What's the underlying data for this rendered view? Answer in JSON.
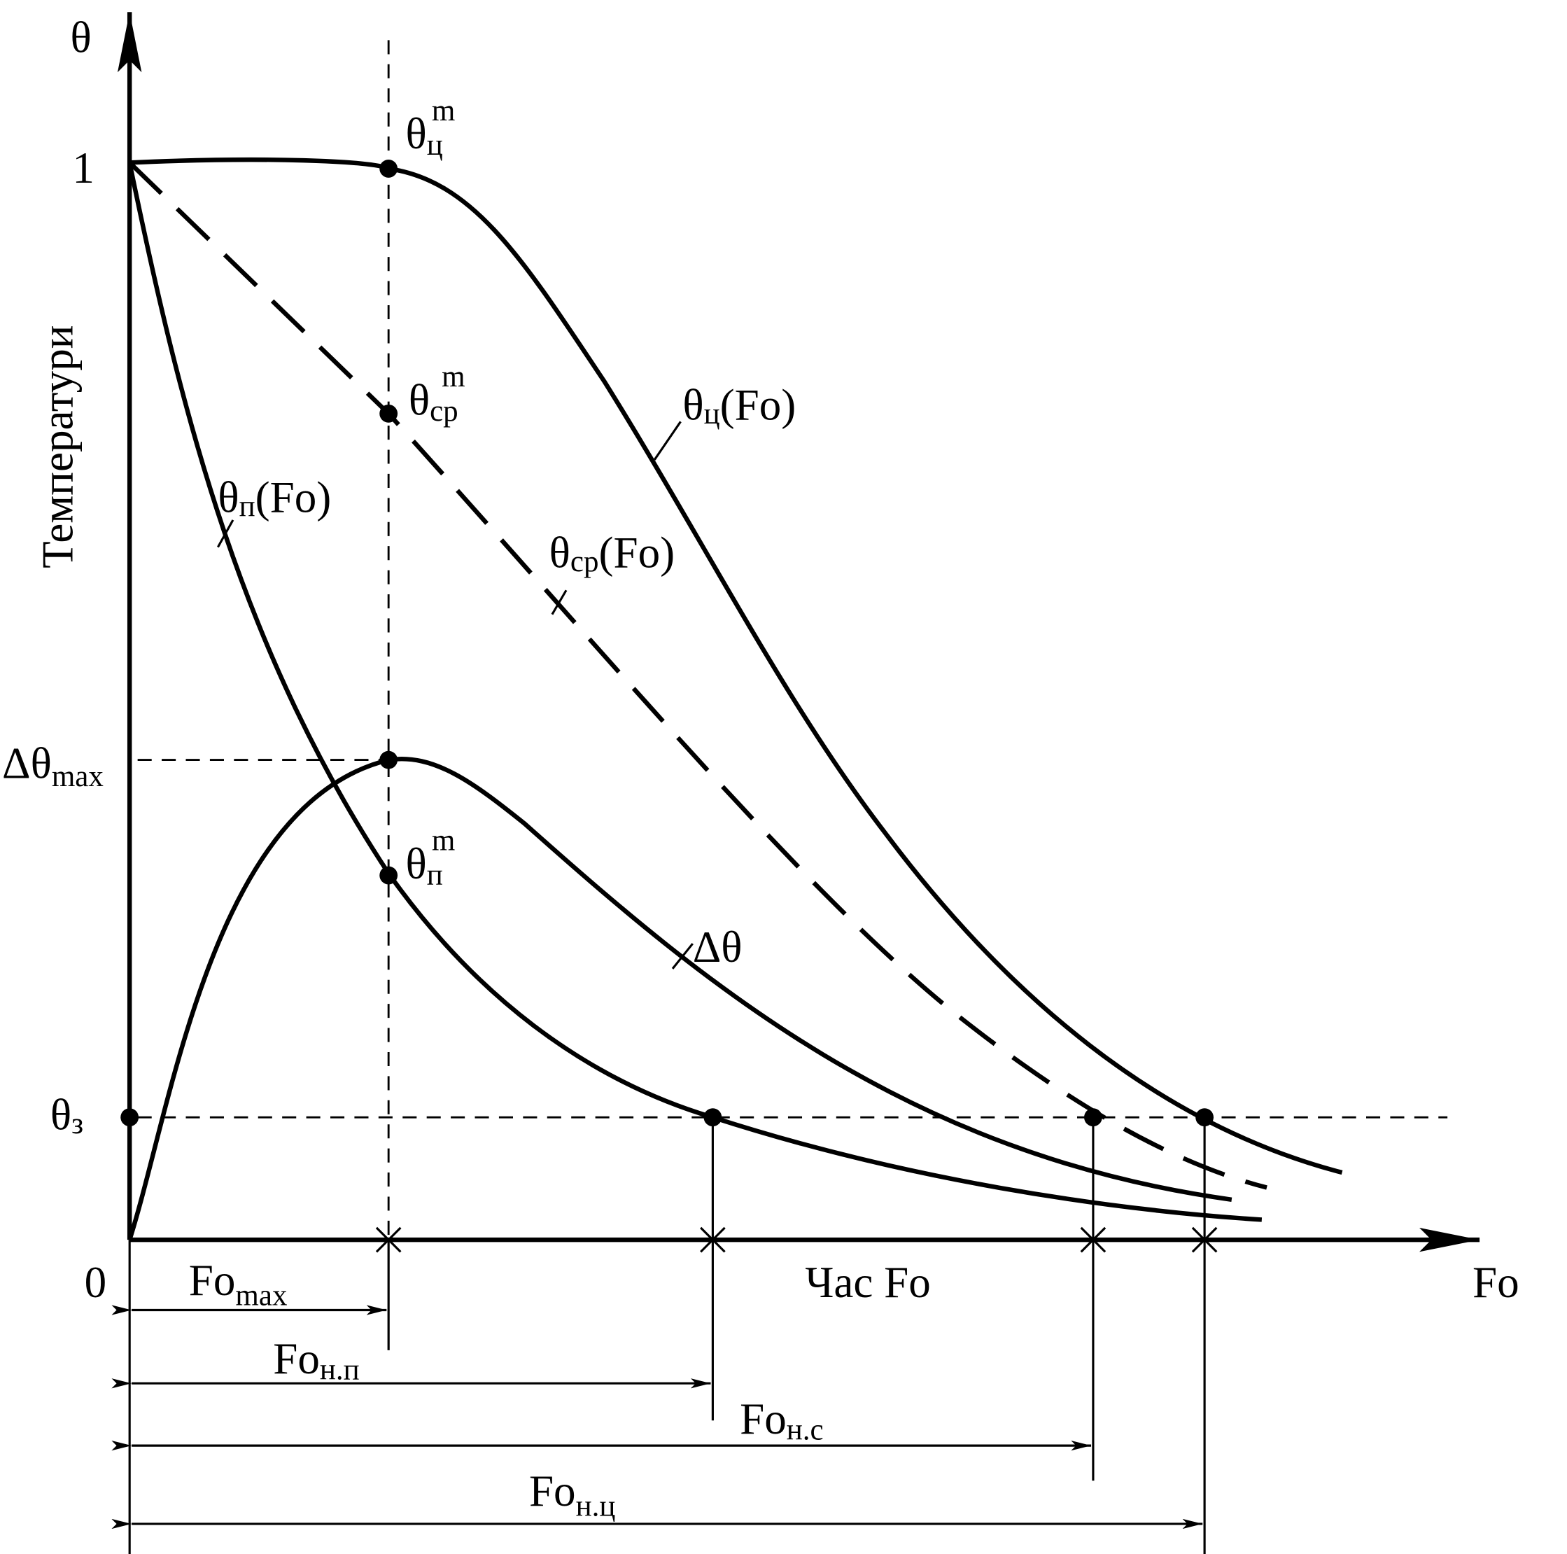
{
  "axes": {
    "y_symbol": "θ",
    "y_title": "Температури",
    "x_symbol": "Fo",
    "x_title": "Час Fo",
    "origin": "0",
    "y_one": "1"
  },
  "y_labels": [
    {
      "base": "Δθ",
      "sub": "max"
    },
    {
      "base": "θ",
      "sub": "з"
    }
  ],
  "point_labels": [
    {
      "base": "θ",
      "sub": "ц",
      "sup": "m"
    },
    {
      "base": "θ",
      "sub": "ср",
      "sup": "m"
    },
    {
      "base": "θ",
      "sub": "п",
      "sup": "m"
    }
  ],
  "curve_labels": [
    {
      "base": "θ",
      "sub": "ц",
      "tail": "(Fo)"
    },
    {
      "base": "θ",
      "sub": "ср",
      "tail": "(Fo)"
    },
    {
      "base": "θ",
      "sub": "п",
      "tail": "(Fo)"
    },
    {
      "base": "Δθ"
    }
  ],
  "intervals": [
    {
      "base": "Fo",
      "sub": "max"
    },
    {
      "base": "Fo",
      "sub": "н.п"
    },
    {
      "base": "Fo",
      "sub": "н.с"
    },
    {
      "base": "Fo",
      "sub": "н.ц"
    }
  ]
}
